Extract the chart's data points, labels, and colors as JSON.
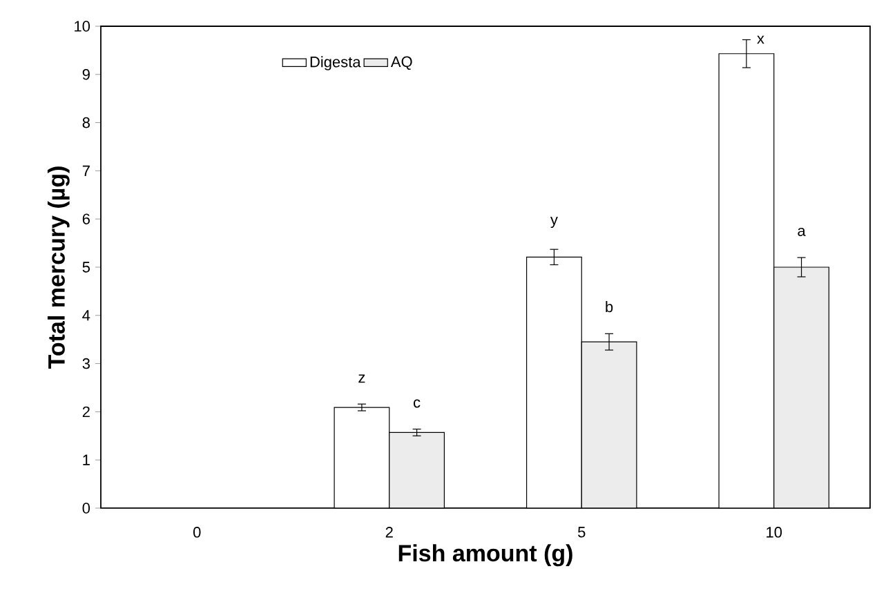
{
  "chart_data": {
    "type": "bar",
    "xlabel": "Fish amount (g)",
    "ylabel": "Total mercury (µg)",
    "categories": [
      "0",
      "2",
      "5",
      "10"
    ],
    "series": [
      {
        "name": "Digesta",
        "color": "#ffffff",
        "values": [
          null,
          2.09,
          5.21,
          9.43
        ],
        "errors": [
          null,
          0.07,
          0.16,
          0.29
        ]
      },
      {
        "name": "AQ",
        "color": "#ececec",
        "values": [
          null,
          1.57,
          3.45,
          5.0
        ],
        "errors": [
          null,
          0.07,
          0.17,
          0.2
        ]
      }
    ],
    "ylim": [
      0,
      10
    ],
    "yticks": [
      0,
      1,
      2,
      3,
      4,
      5,
      6,
      7,
      8,
      9,
      10
    ],
    "legend": "top left",
    "grid": false,
    "annotations": [
      "z",
      "c",
      "y",
      "b",
      "x",
      "a"
    ]
  }
}
